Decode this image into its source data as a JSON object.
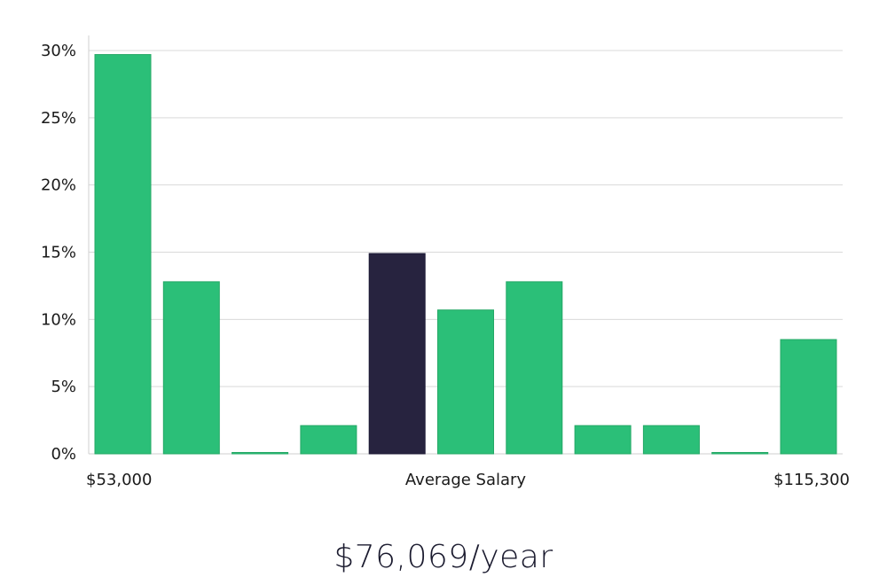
{
  "chart_data": {
    "type": "bar",
    "title": "",
    "xlabel": "Average Salary",
    "ylabel": "",
    "x_start_label": "$53,000",
    "x_end_label": "$115,300",
    "y_ticks": [
      "0%",
      "5%",
      "10%",
      "15%",
      "20%",
      "25%",
      "30%"
    ],
    "ylim": [
      0,
      30
    ],
    "values": [
      29.7,
      12.8,
      0.1,
      2.1,
      14.9,
      10.7,
      12.8,
      2.1,
      2.1,
      0.1,
      8.5
    ],
    "highlight_index": 4,
    "grid": true
  },
  "colors": {
    "bar": "#2bbf78",
    "highlight": "#27233f",
    "grid": "#d9d9d9",
    "axis": "#cfcfcf"
  },
  "summary": {
    "salary_text": "$76,069/year"
  }
}
